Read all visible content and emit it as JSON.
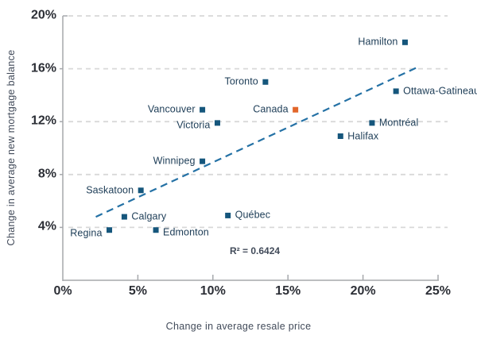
{
  "chart_data": {
    "type": "scatter",
    "title": "",
    "xlabel": "Change in average resale price",
    "ylabel": "Change in average new mortgage balance",
    "xlim": [
      0,
      25
    ],
    "ylim": [
      0,
      20
    ],
    "grid": "horizontal dashed gridlines at each y tick",
    "legend": "none",
    "annotation": "R² = 0.6424",
    "x_ticks": [
      {
        "value": 0,
        "label": "0%"
      },
      {
        "value": 5,
        "label": "5%"
      },
      {
        "value": 10,
        "label": "10%"
      },
      {
        "value": 15,
        "label": "15%"
      },
      {
        "value": 20,
        "label": "20%"
      },
      {
        "value": 25,
        "label": "25%"
      }
    ],
    "y_ticks": [
      {
        "value": 4,
        "label": "4%"
      },
      {
        "value": 8,
        "label": "8%"
      },
      {
        "value": 12,
        "label": "12%"
      },
      {
        "value": 16,
        "label": "16%"
      },
      {
        "value": 20,
        "label": "20%"
      }
    ],
    "trendline": {
      "style": "dashed",
      "x1": 2.2,
      "y1": 4.8,
      "x2": 23.6,
      "y2": 16.1
    },
    "points": [
      {
        "name": "Regina",
        "x": 3.1,
        "y": 3.8,
        "label_side": "left",
        "dy": 4
      },
      {
        "name": "Calgary",
        "x": 4.1,
        "y": 4.8,
        "label_side": "right",
        "dy": 0
      },
      {
        "name": "Saskatoon",
        "x": 5.2,
        "y": 6.8,
        "label_side": "left",
        "dy": 0
      },
      {
        "name": "Edmonton",
        "x": 6.2,
        "y": 3.8,
        "label_side": "right",
        "dy": 3
      },
      {
        "name": "Winnipeg",
        "x": 9.3,
        "y": 9.0,
        "label_side": "left",
        "dy": 0
      },
      {
        "name": "Vancouver",
        "x": 9.3,
        "y": 12.9,
        "label_side": "left",
        "dy": 0
      },
      {
        "name": "Victoria",
        "x": 10.3,
        "y": 11.9,
        "label_side": "left",
        "dy": 3
      },
      {
        "name": "Québec",
        "x": 11.0,
        "y": 4.9,
        "label_side": "right",
        "dy": 0
      },
      {
        "name": "Toronto",
        "x": 13.5,
        "y": 15.0,
        "label_side": "left",
        "dy": 0
      },
      {
        "name": "Canada",
        "x": 15.5,
        "y": 12.9,
        "label_side": "left",
        "dy": 0,
        "series": "canada"
      },
      {
        "name": "Halifax",
        "x": 18.5,
        "y": 10.9,
        "label_side": "right",
        "dy": 0
      },
      {
        "name": "Montréal",
        "x": 20.6,
        "y": 11.9,
        "label_side": "right",
        "dy": 0
      },
      {
        "name": "Ottawa-Gatineau",
        "x": 22.2,
        "y": 14.3,
        "label_side": "right",
        "dy": 0
      },
      {
        "name": "Hamilton",
        "x": 22.8,
        "y": 18.0,
        "label_side": "left",
        "dy": 0
      }
    ],
    "colors": {
      "city_marker": "#15567C",
      "canada_marker": "#E2662A",
      "trendline": "#2471A5",
      "gridline": "#D8D8D8",
      "axis": "#A6A8AC",
      "tick_label": "#2C2F36",
      "city_label": "#1C3C56",
      "axis_title": "#424B5A"
    }
  }
}
